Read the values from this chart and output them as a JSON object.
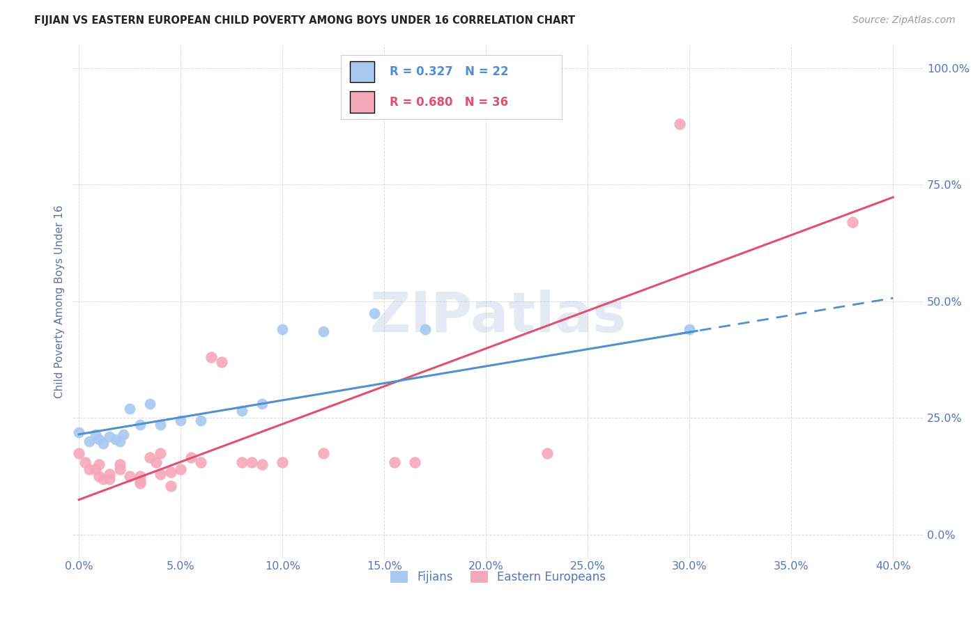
{
  "title": "FIJIAN VS EASTERN EUROPEAN CHILD POVERTY AMONG BOYS UNDER 16 CORRELATION CHART",
  "source": "Source: ZipAtlas.com",
  "ylabel": "Child Poverty Among Boys Under 16",
  "xlim": [
    -0.003,
    0.415
  ],
  "ylim": [
    -0.05,
    1.05
  ],
  "fijians_x": [
    0.0,
    0.005,
    0.008,
    0.01,
    0.012,
    0.015,
    0.018,
    0.02,
    0.022,
    0.025,
    0.03,
    0.035,
    0.04,
    0.05,
    0.06,
    0.08,
    0.09,
    0.1,
    0.12,
    0.145,
    0.17,
    0.3
  ],
  "fijians_y": [
    0.22,
    0.2,
    0.215,
    0.205,
    0.195,
    0.21,
    0.205,
    0.2,
    0.215,
    0.27,
    0.235,
    0.28,
    0.235,
    0.245,
    0.245,
    0.265,
    0.28,
    0.44,
    0.435,
    0.475,
    0.44,
    0.44
  ],
  "eastern_x": [
    0.0,
    0.003,
    0.005,
    0.008,
    0.01,
    0.01,
    0.012,
    0.015,
    0.015,
    0.02,
    0.02,
    0.025,
    0.03,
    0.03,
    0.03,
    0.035,
    0.038,
    0.04,
    0.04,
    0.045,
    0.045,
    0.05,
    0.055,
    0.06,
    0.065,
    0.07,
    0.08,
    0.085,
    0.09,
    0.1,
    0.12,
    0.155,
    0.165,
    0.23,
    0.295,
    0.38
  ],
  "eastern_y": [
    0.175,
    0.155,
    0.14,
    0.14,
    0.125,
    0.15,
    0.12,
    0.13,
    0.12,
    0.15,
    0.14,
    0.125,
    0.125,
    0.11,
    0.115,
    0.165,
    0.155,
    0.175,
    0.13,
    0.135,
    0.105,
    0.14,
    0.165,
    0.155,
    0.38,
    0.37,
    0.155,
    0.155,
    0.15,
    0.155,
    0.175,
    0.155,
    0.155,
    0.175,
    0.88,
    0.67
  ],
  "fijian_R": 0.327,
  "fijian_N": 22,
  "eastern_R": 0.68,
  "eastern_N": 36,
  "fijian_color": "#a8c8f0",
  "eastern_color": "#f5a8bc",
  "fijian_line_color": "#5090d0",
  "eastern_line_color": "#e05070",
  "watermark_text": "ZIPatlas",
  "background_color": "#ffffff",
  "grid_color": "#d5daea",
  "title_color": "#222222",
  "axis_label_color": "#6070a0",
  "tick_label_color": "#5575bb",
  "source_color": "#999999",
  "yticks": [
    0.0,
    0.25,
    0.5,
    0.75,
    1.0
  ],
  "xticks": [
    0.0,
    0.05,
    0.1,
    0.15,
    0.2,
    0.25,
    0.3,
    0.35,
    0.4
  ],
  "fijian_line_intercept": 0.215,
  "fijian_line_slope": 0.73,
  "eastern_line_intercept": 0.075,
  "eastern_line_slope": 1.62
}
